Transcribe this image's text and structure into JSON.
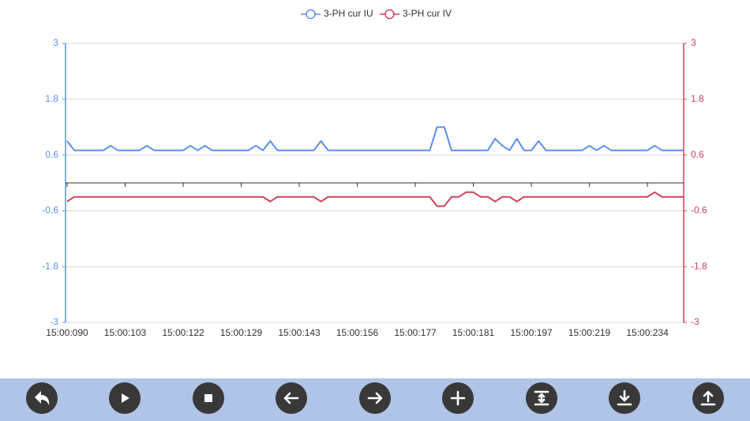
{
  "chart_data": {
    "type": "line",
    "categories": [
      "15:00:090",
      null,
      null,
      null,
      null,
      null,
      null,
      null,
      "15:00:103",
      null,
      null,
      null,
      null,
      null,
      null,
      null,
      "15:00:122",
      null,
      null,
      null,
      null,
      null,
      null,
      null,
      "15:00:129",
      null,
      null,
      null,
      null,
      null,
      null,
      null,
      "15:00:143",
      null,
      null,
      null,
      null,
      null,
      null,
      null,
      "15:00:156",
      null,
      null,
      null,
      null,
      null,
      null,
      null,
      "15:00:177",
      null,
      null,
      null,
      null,
      null,
      null,
      null,
      "15:00:181",
      null,
      null,
      null,
      null,
      null,
      null,
      null,
      "15:00:197",
      null,
      null,
      null,
      null,
      null,
      null,
      null,
      "15:00:219",
      null,
      null,
      null,
      null,
      null,
      null,
      null,
      "15:00:234",
      null,
      null,
      null,
      null,
      null
    ],
    "series": [
      {
        "name": "3-PH cur IU",
        "color": "#5b8ff0",
        "values": [
          0.9,
          0.7,
          0.7,
          0.7,
          0.7,
          0.7,
          0.8,
          0.7,
          0.7,
          0.7,
          0.7,
          0.8,
          0.7,
          0.7,
          0.7,
          0.7,
          0.7,
          0.8,
          0.7,
          0.8,
          0.7,
          0.7,
          0.7,
          0.7,
          0.7,
          0.7,
          0.8,
          0.7,
          0.9,
          0.7,
          0.7,
          0.7,
          0.7,
          0.7,
          0.7,
          0.9,
          0.7,
          0.7,
          0.7,
          0.7,
          0.7,
          0.7,
          0.7,
          0.7,
          0.7,
          0.7,
          0.7,
          0.7,
          0.7,
          0.7,
          0.7,
          1.2,
          1.2,
          0.7,
          0.7,
          0.7,
          0.7,
          0.7,
          0.7,
          0.95,
          0.8,
          0.7,
          0.95,
          0.7,
          0.7,
          0.9,
          0.7,
          0.7,
          0.7,
          0.7,
          0.7,
          0.7,
          0.8,
          0.7,
          0.8,
          0.7,
          0.7,
          0.7,
          0.7,
          0.7,
          0.7,
          0.8,
          0.7,
          0.7,
          0.7,
          0.7
        ]
      },
      {
        "name": "3-PH cur IV",
        "color": "#d0425a",
        "axis": "y2",
        "values": [
          -0.4,
          -0.3,
          -0.3,
          -0.3,
          -0.3,
          -0.3,
          -0.3,
          -0.3,
          -0.3,
          -0.3,
          -0.3,
          -0.3,
          -0.3,
          -0.3,
          -0.3,
          -0.3,
          -0.3,
          -0.3,
          -0.3,
          -0.3,
          -0.3,
          -0.3,
          -0.3,
          -0.3,
          -0.3,
          -0.3,
          -0.3,
          -0.3,
          -0.4,
          -0.3,
          -0.3,
          -0.3,
          -0.3,
          -0.3,
          -0.3,
          -0.4,
          -0.3,
          -0.3,
          -0.3,
          -0.3,
          -0.3,
          -0.3,
          -0.3,
          -0.3,
          -0.3,
          -0.3,
          -0.3,
          -0.3,
          -0.3,
          -0.3,
          -0.3,
          -0.5,
          -0.5,
          -0.3,
          -0.3,
          -0.2,
          -0.2,
          -0.3,
          -0.3,
          -0.4,
          -0.3,
          -0.3,
          -0.4,
          -0.3,
          -0.3,
          -0.3,
          -0.3,
          -0.3,
          -0.3,
          -0.3,
          -0.3,
          -0.3,
          -0.3,
          -0.3,
          -0.3,
          -0.3,
          -0.3,
          -0.3,
          -0.3,
          -0.3,
          -0.3,
          -0.2,
          -0.3,
          -0.3,
          -0.3,
          -0.3
        ]
      }
    ],
    "ylim": [
      -3,
      3
    ],
    "yticks": [
      3,
      1.8,
      0.6,
      -0.6,
      -1.8,
      -3
    ],
    "y2lim": [
      -3,
      3
    ],
    "y2ticks": [
      3,
      1.8,
      0.6,
      -0.6,
      -1.8,
      -3
    ],
    "grid": true,
    "legend": "top"
  }
}
